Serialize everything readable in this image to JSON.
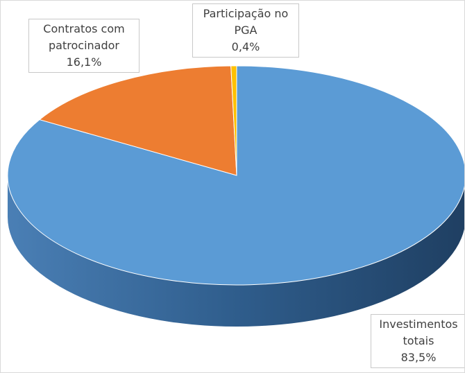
{
  "chart_data": {
    "type": "pie",
    "categories": [
      "Investimentos totais",
      "Contratos com patrocinador",
      "Participação no PGA"
    ],
    "values": [
      83.5,
      16.1,
      0.4
    ],
    "value_labels": [
      "83,5%",
      "16,1%",
      "0,4%"
    ],
    "colors": [
      "#5b9bd5",
      "#ed7d31",
      "#ffc000"
    ]
  }
}
